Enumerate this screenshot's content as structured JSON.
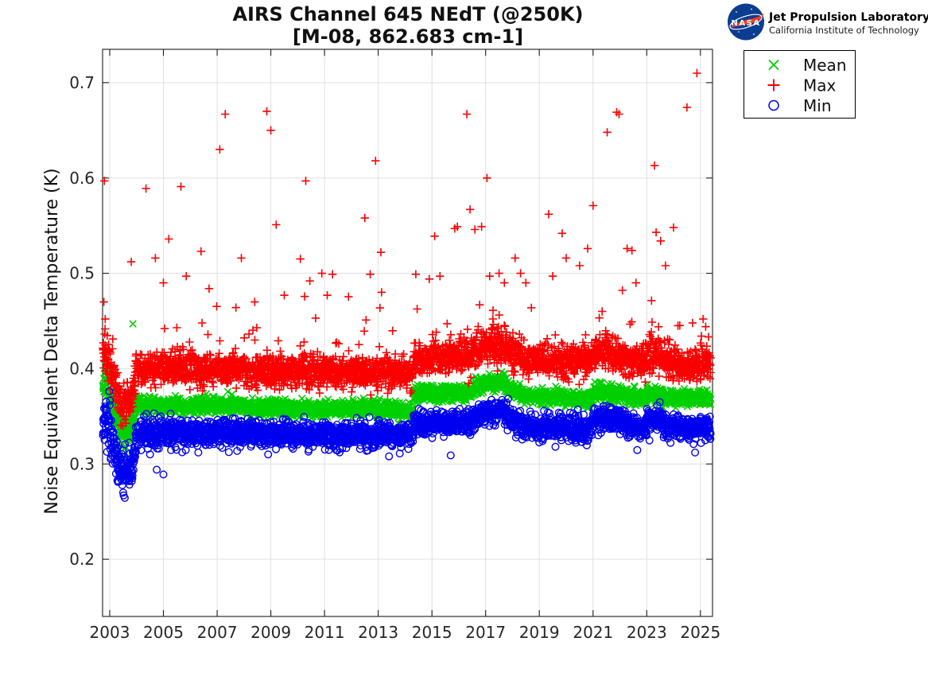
{
  "page": {
    "background": "#ffffff"
  },
  "header": {
    "logo": {
      "nasa_label": "NASA",
      "org_name": "Jet Propulsion Laboratory",
      "org_sub": "California Institute of Technology",
      "insignia_blue": "#0b3d91",
      "insignia_red": "#fc3d21"
    }
  },
  "chart_data": {
    "type": "scatter",
    "title": "AIRS Channel 645 NEdT (@250K)",
    "subtitle": "[M-08, 862.683 cm-1]",
    "xlabel": "",
    "ylabel": "Noise Equivalent Delta Temperature (K)",
    "xlim": [
      2002.733,
      2025.45
    ],
    "ylim": [
      0.14,
      0.735
    ],
    "xticks": [
      2003,
      2005,
      2007,
      2009,
      2011,
      2013,
      2015,
      2017,
      2019,
      2021,
      2023,
      2025
    ],
    "yticks": [
      0.2,
      0.3,
      0.4,
      0.5,
      0.6,
      0.7
    ],
    "grid": true,
    "grid_color": "#dcdcdc",
    "axis_color": "#1a1a1a",
    "legend_position": "outside-top-right",
    "x_start": 2002.745,
    "x_end": 2025.38,
    "points_per_series": 3200,
    "series": [
      {
        "name": "Mean",
        "marker": "x",
        "color": "#00cf00",
        "segments": [
          [
            2002.733,
            2003.02,
            0.381,
            0.381,
            0.009
          ],
          [
            2003.02,
            2003.3,
            0.37,
            0.342,
            0.008
          ],
          [
            2003.3,
            2003.8,
            0.335,
            0.332,
            0.008
          ],
          [
            2003.8,
            2003.98,
            0.338,
            0.358,
            0.006
          ],
          [
            2003.98,
            2008.0,
            0.3615,
            0.3615,
            0.0042
          ],
          [
            2008.0,
            2013.7,
            0.3595,
            0.357,
            0.004
          ],
          [
            2013.7,
            2014.32,
            0.355,
            0.3545,
            0.004
          ],
          [
            2014.32,
            2016.4,
            0.3735,
            0.3745,
            0.0042
          ],
          [
            2016.4,
            2017.1,
            0.377,
            0.386,
            0.0042
          ],
          [
            2017.1,
            2017.8,
            0.3865,
            0.3855,
            0.0045
          ],
          [
            2017.8,
            2018.4,
            0.381,
            0.3725,
            0.0042
          ],
          [
            2018.4,
            2020.9,
            0.371,
            0.3675,
            0.004
          ],
          [
            2020.9,
            2021.05,
            0.369,
            0.375,
            0.004
          ],
          [
            2021.05,
            2022.25,
            0.3755,
            0.3735,
            0.0042
          ],
          [
            2022.25,
            2023.0,
            0.37,
            0.3695,
            0.004
          ],
          [
            2023.0,
            2023.6,
            0.3745,
            0.374,
            0.004
          ],
          [
            2023.6,
            2025.42,
            0.3695,
            0.3685,
            0.0038
          ]
        ],
        "tail": {
          "p": 0.004,
          "min": 0.008,
          "max": 0.02,
          "dir": 1
        },
        "outliers": [
          [
            2003.86,
            0.447
          ]
        ]
      },
      {
        "name": "Max",
        "marker": "plus",
        "color": "#fb0000",
        "segments": [
          [
            2002.733,
            2003.02,
            0.414,
            0.414,
            0.013
          ],
          [
            2003.02,
            2003.3,
            0.4,
            0.372,
            0.01
          ],
          [
            2003.3,
            2003.8,
            0.366,
            0.364,
            0.01
          ],
          [
            2003.8,
            2003.98,
            0.372,
            0.392,
            0.008
          ],
          [
            2003.98,
            2008.0,
            0.4,
            0.4,
            0.0085
          ],
          [
            2008.0,
            2013.7,
            0.398,
            0.3965,
            0.0082
          ],
          [
            2013.7,
            2014.32,
            0.3955,
            0.3955,
            0.008
          ],
          [
            2014.32,
            2016.4,
            0.411,
            0.4135,
            0.009
          ],
          [
            2016.4,
            2017.1,
            0.416,
            0.425,
            0.0095
          ],
          [
            2017.1,
            2017.8,
            0.4255,
            0.4245,
            0.01
          ],
          [
            2017.8,
            2018.4,
            0.419,
            0.411,
            0.009
          ],
          [
            2018.4,
            2020.9,
            0.409,
            0.406,
            0.0085
          ],
          [
            2020.9,
            2021.05,
            0.408,
            0.416,
            0.0085
          ],
          [
            2021.05,
            2022.25,
            0.4165,
            0.412,
            0.0088
          ],
          [
            2022.25,
            2023.0,
            0.407,
            0.4065,
            0.0082
          ],
          [
            2023.0,
            2023.6,
            0.4145,
            0.414,
            0.0085
          ],
          [
            2023.6,
            2025.42,
            0.406,
            0.404,
            0.0082
          ]
        ],
        "tail": {
          "p": 0.03,
          "min": 0.015,
          "max": 0.075,
          "dir": 1
        },
        "outliers": [
          [
            2002.8,
            0.597
          ],
          [
            2002.78,
            0.47
          ],
          [
            2002.83,
            0.452
          ],
          [
            2003.8,
            0.512
          ],
          [
            2004.35,
            0.589
          ],
          [
            2004.7,
            0.516
          ],
          [
            2005.0,
            0.49
          ],
          [
            2005.2,
            0.536
          ],
          [
            2005.65,
            0.591
          ],
          [
            2005.85,
            0.497
          ],
          [
            2006.4,
            0.523
          ],
          [
            2006.7,
            0.484
          ],
          [
            2007.1,
            0.63
          ],
          [
            2007.3,
            0.667
          ],
          [
            2007.7,
            0.464
          ],
          [
            2007.9,
            0.516
          ],
          [
            2008.4,
            0.47
          ],
          [
            2008.85,
            0.67
          ],
          [
            2009.0,
            0.65
          ],
          [
            2009.2,
            0.551
          ],
          [
            2009.5,
            0.477
          ],
          [
            2010.1,
            0.515
          ],
          [
            2010.3,
            0.597
          ],
          [
            2010.45,
            0.492
          ],
          [
            2010.9,
            0.5
          ],
          [
            2011.1,
            0.477
          ],
          [
            2011.3,
            0.499
          ],
          [
            2012.5,
            0.558
          ],
          [
            2012.7,
            0.499
          ],
          [
            2012.9,
            0.618
          ],
          [
            2013.1,
            0.522
          ],
          [
            2014.4,
            0.499
          ],
          [
            2014.9,
            0.494
          ],
          [
            2015.1,
            0.539
          ],
          [
            2015.3,
            0.497
          ],
          [
            2015.85,
            0.547
          ],
          [
            2015.95,
            0.549
          ],
          [
            2016.3,
            0.667
          ],
          [
            2016.42,
            0.567
          ],
          [
            2016.6,
            0.546
          ],
          [
            2016.85,
            0.549
          ],
          [
            2017.05,
            0.6
          ],
          [
            2017.15,
            0.497
          ],
          [
            2017.5,
            0.5
          ],
          [
            2017.7,
            0.49
          ],
          [
            2018.1,
            0.516
          ],
          [
            2018.3,
            0.5
          ],
          [
            2018.5,
            0.49
          ],
          [
            2019.35,
            0.562
          ],
          [
            2019.5,
            0.497
          ],
          [
            2019.85,
            0.542
          ],
          [
            2020.0,
            0.516
          ],
          [
            2020.5,
            0.508
          ],
          [
            2020.8,
            0.526
          ],
          [
            2021.0,
            0.571
          ],
          [
            2021.53,
            0.648
          ],
          [
            2021.88,
            0.669
          ],
          [
            2021.97,
            0.667
          ],
          [
            2022.27,
            0.526
          ],
          [
            2022.45,
            0.524
          ],
          [
            2022.6,
            0.49
          ],
          [
            2023.29,
            0.613
          ],
          [
            2023.35,
            0.543
          ],
          [
            2023.52,
            0.534
          ],
          [
            2023.7,
            0.508
          ],
          [
            2024.0,
            0.548
          ],
          [
            2024.5,
            0.674
          ],
          [
            2024.87,
            0.71
          ],
          [
            2025.1,
            0.452
          ]
        ]
      },
      {
        "name": "Min",
        "marker": "circle",
        "color": "#0000f0",
        "segments": [
          [
            2002.733,
            2003.02,
            0.346,
            0.346,
            0.013
          ],
          [
            2003.02,
            2003.25,
            0.335,
            0.305,
            0.01
          ],
          [
            2003.25,
            2003.85,
            0.295,
            0.293,
            0.01
          ],
          [
            2003.85,
            2003.98,
            0.3,
            0.322,
            0.008
          ],
          [
            2003.98,
            2008.0,
            0.3325,
            0.3325,
            0.0068
          ],
          [
            2008.0,
            2013.7,
            0.3315,
            0.33,
            0.0065
          ],
          [
            2013.7,
            2014.32,
            0.3295,
            0.3295,
            0.0065
          ],
          [
            2014.32,
            2016.4,
            0.342,
            0.3435,
            0.0065
          ],
          [
            2016.4,
            2017.1,
            0.346,
            0.356,
            0.0065
          ],
          [
            2017.1,
            2017.8,
            0.3565,
            0.3555,
            0.0068
          ],
          [
            2017.8,
            2018.4,
            0.35,
            0.341,
            0.0065
          ],
          [
            2018.4,
            2020.9,
            0.34,
            0.337,
            0.0065
          ],
          [
            2020.9,
            2021.05,
            0.339,
            0.349,
            0.0062
          ],
          [
            2021.05,
            2022.25,
            0.3495,
            0.344,
            0.0065
          ],
          [
            2022.25,
            2023.0,
            0.339,
            0.3385,
            0.0062
          ],
          [
            2023.0,
            2023.6,
            0.3475,
            0.347,
            0.0062
          ],
          [
            2023.6,
            2025.42,
            0.339,
            0.3375,
            0.0062
          ]
        ],
        "tail": {
          "p": 0.012,
          "min": 0.008,
          "max": 0.022,
          "dir": -1
        },
        "outliers": [
          [
            2004.5,
            0.31
          ],
          [
            2004.75,
            0.294
          ],
          [
            2005.0,
            0.289
          ],
          [
            2006.3,
            0.312
          ],
          [
            2008.9,
            0.31
          ],
          [
            2010.4,
            0.313
          ],
          [
            2013.4,
            0.308
          ],
          [
            2013.8,
            0.311
          ],
          [
            2015.7,
            0.309
          ],
          [
            2019.6,
            0.318
          ],
          [
            2024.8,
            0.312
          ]
        ]
      }
    ]
  }
}
